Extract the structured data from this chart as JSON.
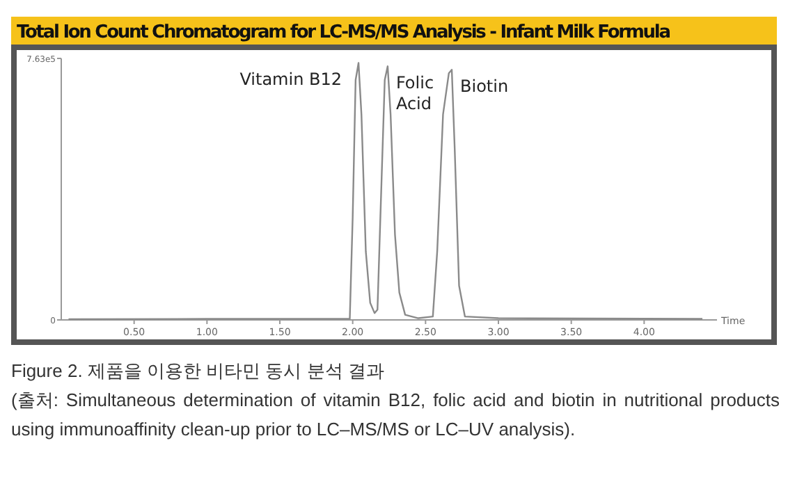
{
  "chart_data": {
    "type": "line",
    "title": "Total Ion Count Chromatogram for LC-MS/MS Analysis - Infant Milk Formula",
    "xlabel": "Time",
    "color": "#8a8a8a",
    "x": [
      0.05,
      1.0,
      1.98,
      2.0,
      2.02,
      2.04,
      2.06,
      2.09,
      2.12,
      2.15,
      2.17,
      2.19,
      2.22,
      2.24,
      2.26,
      2.29,
      2.32,
      2.36,
      2.45,
      2.55,
      2.58,
      2.62,
      2.66,
      2.68,
      2.7,
      2.73,
      2.77,
      3.0,
      4.4
    ],
    "values": [
      2000,
      3000,
      3000,
      300000,
      700000,
      750000,
      600000,
      200000,
      50000,
      20000,
      30000,
      300000,
      700000,
      740000,
      600000,
      250000,
      80000,
      15000,
      5000,
      10000,
      200000,
      600000,
      720000,
      730000,
      500000,
      100000,
      10000,
      5000,
      3000
    ],
    "xlim": [
      0,
      4.5
    ],
    "xticks": [
      {
        "value": 0.5,
        "label": "0.50"
      },
      {
        "value": 1,
        "label": "1.00"
      },
      {
        "value": 1.5,
        "label": "1.50"
      },
      {
        "value": 2,
        "label": "2.00"
      },
      {
        "value": 2.5,
        "label": "2.50"
      },
      {
        "value": 3,
        "label": "3.00"
      },
      {
        "value": 3.5,
        "label": "3.50"
      },
      {
        "value": 4,
        "label": "4.00"
      }
    ],
    "ylim": [
      0,
      763000
    ],
    "yticks": [
      0,
      {
        "value": 763000,
        "label": "7.63e5"
      }
    ],
    "annotations": [
      {
        "text": "Vitamin B12",
        "x": 2.04,
        "y": 750000
      },
      {
        "text": "Folic Acid",
        "x": 2.24,
        "y": 740000
      },
      {
        "text": "Biotin",
        "x": 2.68,
        "y": 730000
      },
      "Figure 2. 제품을 이용한 비타민 동시 분석 결과",
      "(출처: Simultaneous determination of vitamin B12, folic acid and biotin in nutritional products using immunoaffinity clean-up prior to LC–MS/MS or LC–UV analysis)."
    ]
  }
}
